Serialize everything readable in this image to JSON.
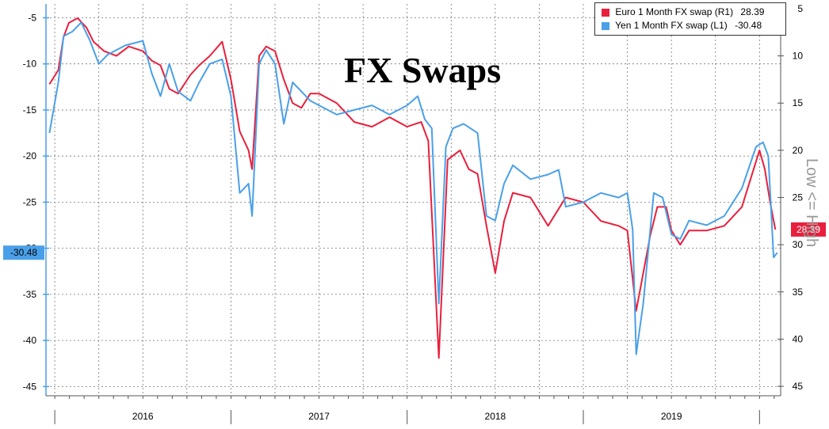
{
  "chart_data": {
    "type": "line",
    "title": "FX Swaps",
    "x_ticks": [
      "2016",
      "2017",
      "2018",
      "2019"
    ],
    "left_axis": {
      "ticks": [
        -5,
        -10,
        -15,
        -20,
        -25,
        -30,
        -35,
        -40,
        -45
      ],
      "range": [
        -46,
        -3.5
      ]
    },
    "right_axis": {
      "ticks": [
        5,
        10,
        15,
        20,
        25,
        30,
        35,
        40,
        45
      ],
      "range": [
        4.5,
        46
      ],
      "note": "Low <= High"
    },
    "x_range": [
      2015.45,
      2019.62
    ],
    "series": [
      {
        "name": "Euro 1 Month FX swap (R1)",
        "axis": "right",
        "color": "#e8203d",
        "last_value": "28.39",
        "points": [
          [
            2015.47,
            13.0
          ],
          [
            2015.52,
            11.5
          ],
          [
            2015.55,
            8.0
          ],
          [
            2015.58,
            6.5
          ],
          [
            2015.63,
            6.0
          ],
          [
            2015.68,
            7.0
          ],
          [
            2015.72,
            8.5
          ],
          [
            2015.78,
            9.5
          ],
          [
            2015.85,
            10.0
          ],
          [
            2015.92,
            9.0
          ],
          [
            2016.0,
            9.5
          ],
          [
            2016.05,
            10.5
          ],
          [
            2016.1,
            11.0
          ],
          [
            2016.15,
            13.5
          ],
          [
            2016.2,
            14.0
          ],
          [
            2016.27,
            12.0
          ],
          [
            2016.32,
            11.0
          ],
          [
            2016.38,
            10.0
          ],
          [
            2016.45,
            8.5
          ],
          [
            2016.5,
            12.5
          ],
          [
            2016.55,
            18.0
          ],
          [
            2016.6,
            20.0
          ],
          [
            2016.62,
            22.0
          ],
          [
            2016.66,
            10.0
          ],
          [
            2016.7,
            9.0
          ],
          [
            2016.75,
            9.5
          ],
          [
            2016.8,
            12.5
          ],
          [
            2016.85,
            15.0
          ],
          [
            2016.9,
            15.5
          ],
          [
            2016.95,
            14.0
          ],
          [
            2017.0,
            14.0
          ],
          [
            2017.1,
            15.0
          ],
          [
            2017.2,
            17.0
          ],
          [
            2017.3,
            17.5
          ],
          [
            2017.4,
            16.5
          ],
          [
            2017.5,
            17.5
          ],
          [
            2017.58,
            17.0
          ],
          [
            2017.62,
            19.0
          ],
          [
            2017.68,
            42.0
          ],
          [
            2017.73,
            21.0
          ],
          [
            2017.8,
            20.0
          ],
          [
            2017.85,
            22.0
          ],
          [
            2017.9,
            22.5
          ],
          [
            2017.95,
            28.0
          ],
          [
            2018.0,
            33.0
          ],
          [
            2018.05,
            27.5
          ],
          [
            2018.1,
            24.5
          ],
          [
            2018.2,
            25.0
          ],
          [
            2018.3,
            28.0
          ],
          [
            2018.4,
            25.0
          ],
          [
            2018.5,
            25.5
          ],
          [
            2018.6,
            27.5
          ],
          [
            2018.7,
            28.0
          ],
          [
            2018.75,
            28.5
          ],
          [
            2018.8,
            37.0
          ],
          [
            2018.83,
            34.0
          ],
          [
            2018.88,
            29.0
          ],
          [
            2018.92,
            26.0
          ],
          [
            2018.97,
            26.0
          ],
          [
            2019.0,
            28.5
          ],
          [
            2019.05,
            30.0
          ],
          [
            2019.1,
            28.5
          ],
          [
            2019.2,
            28.5
          ],
          [
            2019.3,
            28.0
          ],
          [
            2019.4,
            26.0
          ],
          [
            2019.45,
            23.0
          ],
          [
            2019.5,
            20.0
          ],
          [
            2019.53,
            22.0
          ],
          [
            2019.56,
            25.5
          ],
          [
            2019.59,
            28.4
          ]
        ]
      },
      {
        "name": "Yen 1 Month FX swap (L1)",
        "axis": "left",
        "color": "#4aa0e8",
        "last_value": "-30.48",
        "points": [
          [
            2015.47,
            -17.5
          ],
          [
            2015.52,
            -12.0
          ],
          [
            2015.55,
            -7.0
          ],
          [
            2015.6,
            -6.5
          ],
          [
            2015.65,
            -5.5
          ],
          [
            2015.7,
            -7.5
          ],
          [
            2015.75,
            -10.0
          ],
          [
            2015.8,
            -9.0
          ],
          [
            2015.9,
            -8.0
          ],
          [
            2016.0,
            -7.5
          ],
          [
            2016.05,
            -11.0
          ],
          [
            2016.1,
            -13.5
          ],
          [
            2016.15,
            -10.0
          ],
          [
            2016.2,
            -13.0
          ],
          [
            2016.27,
            -14.0
          ],
          [
            2016.32,
            -12.0
          ],
          [
            2016.38,
            -10.0
          ],
          [
            2016.45,
            -9.5
          ],
          [
            2016.5,
            -13.5
          ],
          [
            2016.55,
            -24.0
          ],
          [
            2016.6,
            -23.0
          ],
          [
            2016.62,
            -26.5
          ],
          [
            2016.66,
            -10.0
          ],
          [
            2016.7,
            -8.5
          ],
          [
            2016.75,
            -10.0
          ],
          [
            2016.8,
            -16.5
          ],
          [
            2016.85,
            -12.0
          ],
          [
            2016.9,
            -13.0
          ],
          [
            2016.95,
            -14.0
          ],
          [
            2017.0,
            -14.5
          ],
          [
            2017.1,
            -15.5
          ],
          [
            2017.2,
            -15.0
          ],
          [
            2017.3,
            -14.5
          ],
          [
            2017.4,
            -15.5
          ],
          [
            2017.5,
            -14.5
          ],
          [
            2017.56,
            -13.5
          ],
          [
            2017.6,
            -16.0
          ],
          [
            2017.64,
            -17.0
          ],
          [
            2017.68,
            -36.0
          ],
          [
            2017.72,
            -19.0
          ],
          [
            2017.76,
            -17.0
          ],
          [
            2017.82,
            -16.5
          ],
          [
            2017.86,
            -17.0
          ],
          [
            2017.9,
            -17.5
          ],
          [
            2017.95,
            -26.5
          ],
          [
            2018.0,
            -27.0
          ],
          [
            2018.05,
            -23.0
          ],
          [
            2018.1,
            -21.0
          ],
          [
            2018.2,
            -22.5
          ],
          [
            2018.3,
            -22.0
          ],
          [
            2018.36,
            -21.5
          ],
          [
            2018.4,
            -25.5
          ],
          [
            2018.5,
            -25.0
          ],
          [
            2018.6,
            -24.0
          ],
          [
            2018.7,
            -24.5
          ],
          [
            2018.75,
            -24.0
          ],
          [
            2018.78,
            -28.0
          ],
          [
            2018.8,
            -41.5
          ],
          [
            2018.84,
            -36.0
          ],
          [
            2018.9,
            -24.0
          ],
          [
            2018.95,
            -24.5
          ],
          [
            2019.0,
            -28.5
          ],
          [
            2019.05,
            -29.0
          ],
          [
            2019.1,
            -27.0
          ],
          [
            2019.2,
            -27.5
          ],
          [
            2019.3,
            -26.5
          ],
          [
            2019.4,
            -23.5
          ],
          [
            2019.48,
            -19.0
          ],
          [
            2019.52,
            -18.5
          ],
          [
            2019.55,
            -20.0
          ],
          [
            2019.58,
            -31.0
          ],
          [
            2019.6,
            -30.48
          ]
        ]
      }
    ]
  },
  "legend": {
    "euro_label": "Euro 1 Month FX swap (R1)",
    "euro_value": "28.39",
    "yen_label": "Yen 1 Month FX swap (L1)",
    "yen_value": "-30.48"
  },
  "right_axis_note": "Low <= High",
  "colors": {
    "euro": "#e8203d",
    "yen": "#4aa0e8",
    "grid": "#555555"
  }
}
